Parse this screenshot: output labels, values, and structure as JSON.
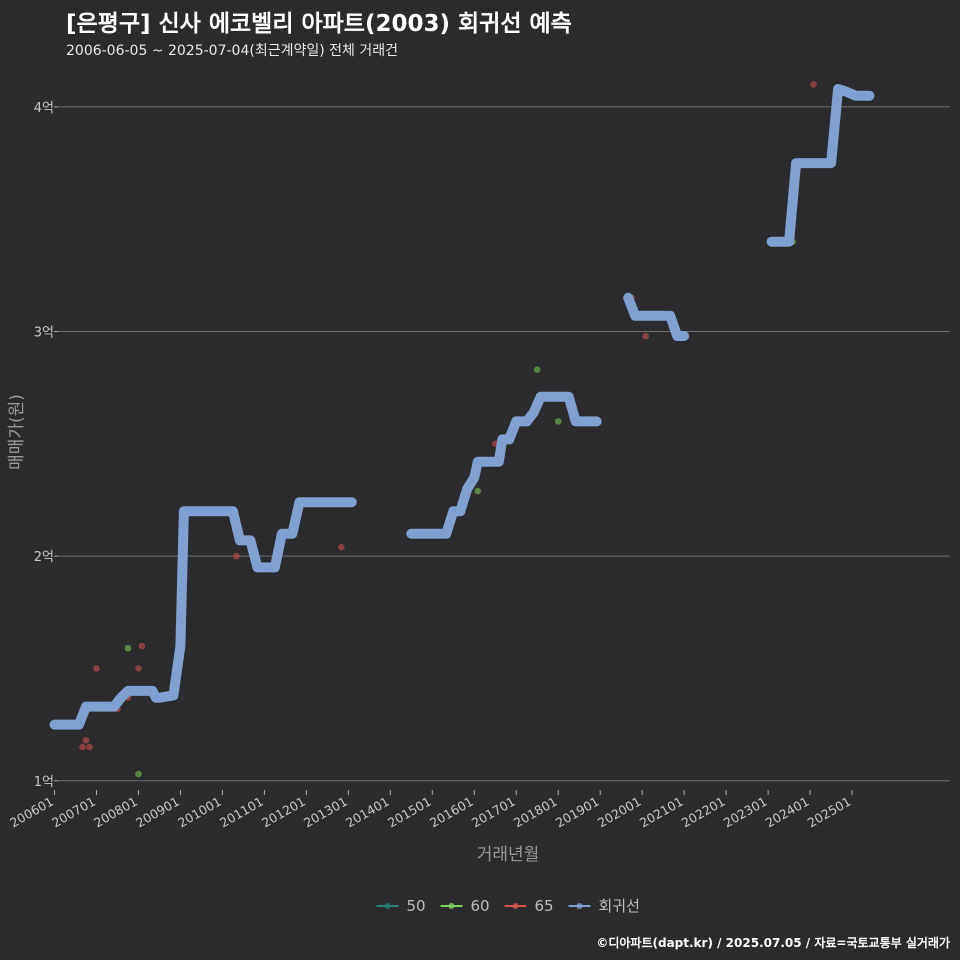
{
  "header": {
    "title": "[은평구] 신사 에코벨리 아파트(2003) 회귀선 예측",
    "subtitle": "2006-06-05 ~ 2025-07-04(최근계약일) 전체 거래건"
  },
  "caption": "©디아파트(dapt.kr) / 2025.07.05 / 자료=국토교통부 실거래가",
  "colors": {
    "background": "#2b2a2d",
    "grid": "#6e6e6e",
    "s50": "#2a7f7a",
    "s60": "#7fd15a",
    "s65": "#d9534f",
    "regression": "#7fa0d0"
  },
  "chart_data": {
    "type": "scatter",
    "xlabel": "거래년월",
    "ylabel": "매매가(원)",
    "x_unit": "year-month",
    "xlim": [
      "2006-02",
      "2027-05"
    ],
    "ylim": [
      0.95,
      4.2
    ],
    "y_ticks": [
      {
        "value": 1,
        "label": "1억"
      },
      {
        "value": 2,
        "label": "2억"
      },
      {
        "value": 3,
        "label": "3억"
      },
      {
        "value": 4,
        "label": "4억"
      }
    ],
    "x_ticks": [
      {
        "value": "2006-01",
        "label": "200601"
      },
      {
        "value": "2007-01",
        "label": "200701"
      },
      {
        "value": "2008-01",
        "label": "200801"
      },
      {
        "value": "2009-01",
        "label": "200901"
      },
      {
        "value": "2010-01",
        "label": "201001"
      },
      {
        "value": "2011-01",
        "label": "201101"
      },
      {
        "value": "2012-01",
        "label": "201201"
      },
      {
        "value": "2013-01",
        "label": "201301"
      },
      {
        "value": "2014-01",
        "label": "201401"
      },
      {
        "value": "2015-01",
        "label": "201501"
      },
      {
        "value": "2016-01",
        "label": "201601"
      },
      {
        "value": "2017-01",
        "label": "201701"
      },
      {
        "value": "2018-01",
        "label": "201801"
      },
      {
        "value": "2019-01",
        "label": "201901"
      },
      {
        "value": "2020-01",
        "label": "202001"
      },
      {
        "value": "2021-01",
        "label": "202101"
      },
      {
        "value": "2022-01",
        "label": "202201"
      },
      {
        "value": "2023-01",
        "label": "202301"
      },
      {
        "value": "2024-01",
        "label": "202401"
      },
      {
        "value": "2025-01",
        "label": "202501"
      }
    ],
    "legend": {
      "position": "bottom",
      "items": [
        {
          "label": "50",
          "color_key": "s50"
        },
        {
          "label": "60",
          "color_key": "s60"
        },
        {
          "label": "65",
          "color_key": "s65"
        },
        {
          "label": "회귀선",
          "color_key": "regression"
        }
      ]
    },
    "series": [
      {
        "name": "50",
        "color_key": "s50",
        "points": []
      },
      {
        "name": "60",
        "color_key": "s60",
        "points": [
          {
            "x": "2007-10",
            "y": 1.59
          },
          {
            "x": "2008-01",
            "y": 1.03
          },
          {
            "x": "2016-02",
            "y": 2.29
          },
          {
            "x": "2017-07",
            "y": 2.83
          },
          {
            "x": "2018-01",
            "y": 2.6
          },
          {
            "x": "2023-08",
            "y": 3.4
          }
        ]
      },
      {
        "name": "65",
        "color_key": "s65",
        "points": [
          {
            "x": "2006-09",
            "y": 1.15
          },
          {
            "x": "2006-10",
            "y": 1.18
          },
          {
            "x": "2006-11",
            "y": 1.15
          },
          {
            "x": "2007-01",
            "y": 1.5
          },
          {
            "x": "2007-07",
            "y": 1.32
          },
          {
            "x": "2007-10",
            "y": 1.37
          },
          {
            "x": "2008-01",
            "y": 1.5
          },
          {
            "x": "2008-02",
            "y": 1.6
          },
          {
            "x": "2010-05",
            "y": 2.0
          },
          {
            "x": "2012-11",
            "y": 2.04
          },
          {
            "x": "2016-07",
            "y": 2.5
          },
          {
            "x": "2019-10",
            "y": 3.15
          },
          {
            "x": "2020-02",
            "y": 2.98
          },
          {
            "x": "2024-02",
            "y": 4.1
          }
        ]
      }
    ],
    "regression": {
      "name": "회귀선",
      "color_key": "regression",
      "segments": [
        [
          [
            "2006-01",
            1.25
          ],
          [
            "2006-08",
            1.25
          ],
          [
            "2006-10",
            1.33
          ],
          [
            "2007-03",
            1.33
          ],
          [
            "2007-06",
            1.33
          ],
          [
            "2007-08",
            1.37
          ],
          [
            "2007-10",
            1.4
          ],
          [
            "2008-02",
            1.4
          ],
          [
            "2008-05",
            1.4
          ],
          [
            "2008-06",
            1.37
          ],
          [
            "2008-07",
            1.37
          ],
          [
            "2008-11",
            1.38
          ],
          [
            "2009-01",
            1.6
          ],
          [
            "2009-02",
            2.2
          ],
          [
            "2009-07",
            2.2
          ],
          [
            "2010-04",
            2.2
          ],
          [
            "2010-06",
            2.07
          ],
          [
            "2010-09",
            2.07
          ],
          [
            "2010-11",
            1.95
          ],
          [
            "2011-04",
            1.95
          ],
          [
            "2011-06",
            2.1
          ],
          [
            "2011-09",
            2.1
          ],
          [
            "2011-11",
            2.24
          ],
          [
            "2012-04",
            2.24
          ],
          [
            "2013-02",
            2.24
          ]
        ],
        [
          [
            "2014-07",
            2.1
          ],
          [
            "2015-05",
            2.1
          ],
          [
            "2015-07",
            2.2
          ],
          [
            "2015-09",
            2.2
          ],
          [
            "2015-11",
            2.3
          ],
          [
            "2016-01",
            2.35
          ],
          [
            "2016-02",
            2.42
          ],
          [
            "2016-06",
            2.42
          ],
          [
            "2016-08",
            2.42
          ],
          [
            "2016-09",
            2.52
          ],
          [
            "2016-11",
            2.52
          ],
          [
            "2017-01",
            2.6
          ],
          [
            "2017-04",
            2.6
          ],
          [
            "2017-06",
            2.64
          ],
          [
            "2017-08",
            2.71
          ],
          [
            "2018-04",
            2.71
          ],
          [
            "2018-06",
            2.6
          ],
          [
            "2018-12",
            2.6
          ]
        ],
        [
          [
            "2019-09",
            3.15
          ],
          [
            "2019-11",
            3.07
          ],
          [
            "2020-06",
            3.07
          ],
          [
            "2020-09",
            3.07
          ],
          [
            "2020-11",
            2.98
          ],
          [
            "2021-01",
            2.98
          ]
        ],
        [
          [
            "2023-02",
            3.4
          ],
          [
            "2023-07",
            3.4
          ],
          [
            "2023-09",
            3.75
          ],
          [
            "2024-03",
            3.75
          ],
          [
            "2024-07",
            3.75
          ],
          [
            "2024-09",
            4.08
          ],
          [
            "2024-11",
            4.07
          ],
          [
            "2025-02",
            4.05
          ],
          [
            "2025-06",
            4.05
          ]
        ]
      ]
    }
  }
}
